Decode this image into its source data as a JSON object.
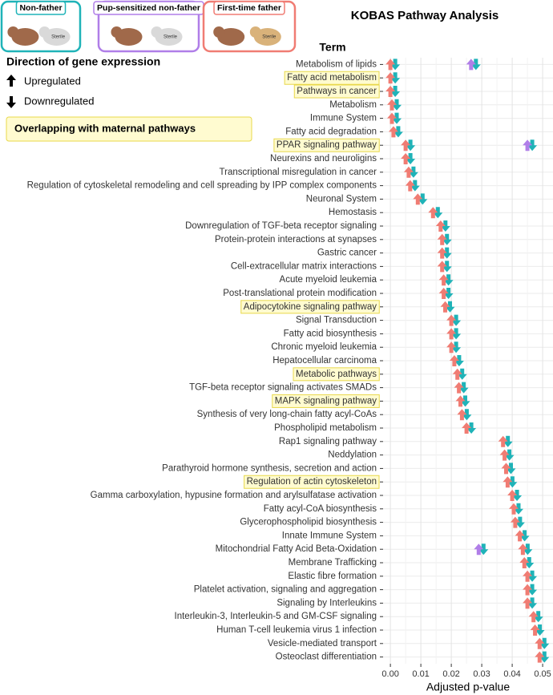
{
  "chart_data": {
    "type": "arrow-dot",
    "title": "KOBAS Pathway Analysis",
    "y_axis_title": "Term",
    "x_axis_title": "Adjusted p-value",
    "legend_title": "Direction of gene expression",
    "direction_labels": [
      "Upregulated",
      "Downregulated"
    ],
    "highlight_label": "Overlapping with maternal pathways",
    "mouse_label": "Sterile",
    "reference": {
      "name": "Non-father",
      "color": "#1fb3b8"
    },
    "categories": [
      "Metabolism of lipids",
      "Fatty acid metabolism",
      "Pathways in cancer",
      "Metabolism",
      "Immune System",
      "Fatty acid degradation",
      "PPAR signaling pathway",
      "Neurexins and neuroligins",
      "Transcriptional misregulation in cancer",
      "Regulation of cytoskeletal remodeling and cell spreading by IPP complex components",
      "Neuronal System",
      "Hemostasis",
      "Downregulation of TGF-beta receptor signaling",
      "Protein-protein interactions at synapses",
      "Gastric cancer",
      "Cell-extracellular matrix interactions",
      "Acute myeloid leukemia",
      "Post-translational protein modification",
      "Adipocytokine signaling pathway",
      "Signal Transduction",
      "Fatty acid biosynthesis",
      "Chronic myeloid leukemia",
      "Hepatocellular carcinoma",
      "Metabolic pathways",
      "TGF-beta receptor signaling activates SMADs",
      "MAPK signaling pathway",
      "Synthesis of very long-chain fatty acyl-CoAs",
      "Phospholipid metabolism",
      "Rap1 signaling pathway",
      "Neddylation",
      "Parathyroid hormone synthesis, secretion and action",
      "Regulation of actin cytoskeleton",
      "Gamma carboxylation, hypusine formation and arylsulfatase activation",
      "Fatty acyl-CoA biosynthesis",
      "Glycerophospholipid biosynthesis",
      "Innate Immune System",
      "Mitochondrial Fatty Acid Beta-Oxidation",
      "Membrane Trafficking",
      "Elastic fibre formation",
      "Platelet activation, signaling and aggregation",
      "Signaling by Interleukins",
      "Interleukin-3, Interleukin-5 and GM-CSF signaling",
      "Human T-cell leukemia virus 1 infection",
      "Vesicle-mediated transport",
      "Osteoclast differentiation"
    ],
    "highlight": [
      false,
      true,
      true,
      false,
      false,
      false,
      true,
      false,
      false,
      false,
      false,
      false,
      false,
      false,
      false,
      false,
      false,
      false,
      true,
      false,
      false,
      false,
      false,
      true,
      false,
      true,
      false,
      false,
      false,
      false,
      false,
      true,
      false,
      false,
      false,
      false,
      false,
      false,
      false,
      false,
      false,
      false,
      false,
      false,
      false
    ],
    "series": [
      {
        "name": "First-time father",
        "color": "#f07c73",
        "values": [
          0.0,
          0.0,
          0.0,
          0.0005,
          0.0005,
          0.001,
          0.005,
          0.005,
          0.006,
          0.0065,
          0.009,
          0.014,
          0.0165,
          0.017,
          0.017,
          0.017,
          0.0175,
          0.0175,
          0.018,
          0.02,
          0.02,
          0.02,
          0.021,
          0.022,
          0.0225,
          0.023,
          0.0235,
          0.025,
          0.037,
          0.0375,
          0.038,
          0.0385,
          0.04,
          0.0405,
          0.041,
          0.0425,
          0.0435,
          0.044,
          0.045,
          0.045,
          0.045,
          0.047,
          0.0475,
          0.049,
          0.049
        ]
      },
      {
        "name": "Pup-sensitized non-father",
        "color": "#b07ee8",
        "values": [
          0.0265,
          null,
          null,
          null,
          null,
          null,
          0.045,
          null,
          null,
          null,
          null,
          null,
          null,
          null,
          null,
          null,
          null,
          null,
          null,
          null,
          null,
          null,
          null,
          null,
          null,
          null,
          null,
          null,
          null,
          null,
          null,
          null,
          null,
          null,
          null,
          null,
          0.029,
          null,
          null,
          null,
          null,
          null,
          null,
          null,
          null
        ]
      }
    ],
    "xlim": [
      -0.0024,
      0.0534
    ],
    "xticks": [
      {
        "value": 0,
        "label": "0.00"
      },
      {
        "value": 0.01,
        "label": "0.01"
      },
      {
        "value": 0.02,
        "label": "0.02"
      },
      {
        "value": 0.03,
        "label": "0.03"
      },
      {
        "value": 0.04,
        "label": "0.04"
      },
      {
        "value": 0.05,
        "label": "0.05"
      }
    ],
    "grid": true
  }
}
